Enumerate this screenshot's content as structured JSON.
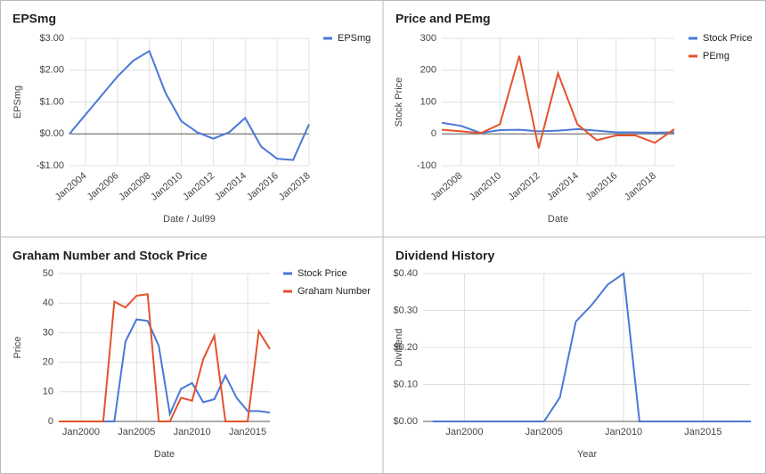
{
  "chart_data": [
    {
      "type": "line",
      "title": "EPSmg",
      "xlabel": "Date / Jul99",
      "ylabel": "EPSmg",
      "x": [
        2003,
        2004,
        2005,
        2006,
        2007,
        2008,
        2009,
        2010,
        2011,
        2012,
        2013,
        2014,
        2015,
        2016,
        2017,
        2018
      ],
      "series": [
        {
          "name": "EPSmg",
          "color": "#4a78d6",
          "values": [
            0,
            0.6,
            1.2,
            1.8,
            2.3,
            2.6,
            1.3,
            0.4,
            0.05,
            -0.15,
            0.05,
            0.5,
            -0.4,
            -0.78,
            -0.82,
            0.3
          ]
        }
      ],
      "xlim": [
        2003,
        2018
      ],
      "xticks": [
        {
          "value": 2004,
          "label": "Jan2004"
        },
        {
          "value": 2006,
          "label": "Jan2006"
        },
        {
          "value": 2008,
          "label": "Jan2008"
        },
        {
          "value": 2010,
          "label": "Jan2010"
        },
        {
          "value": 2012,
          "label": "Jan2012"
        },
        {
          "value": 2014,
          "label": "Jan2014"
        },
        {
          "value": 2016,
          "label": "Jan2016"
        },
        {
          "value": 2018,
          "label": "Jan2018"
        }
      ],
      "ylim": [
        -1,
        3
      ],
      "yticks": [
        {
          "value": 3,
          "label": "$3.00"
        },
        {
          "value": 2,
          "label": "$2.00"
        },
        {
          "value": 1,
          "label": "$1.00"
        },
        {
          "value": 0,
          "label": "$0.00"
        },
        {
          "value": -1,
          "label": "-$1.00"
        }
      ],
      "grid": true,
      "legend": "right"
    },
    {
      "type": "line",
      "title": "Price and PEmg",
      "xlabel": "Date",
      "ylabel": "Stock Price",
      "x": [
        2007,
        2008,
        2009,
        2010,
        2011,
        2012,
        2013,
        2014,
        2015,
        2016,
        2017,
        2018,
        2019
      ],
      "series": [
        {
          "name": "Stock Price",
          "color": "#4a78d6",
          "values": [
            35,
            25,
            3,
            12,
            13,
            8,
            10,
            15,
            10,
            5,
            5,
            4,
            5
          ]
        },
        {
          "name": "PEmg",
          "color": "#e4522d",
          "values": [
            13,
            8,
            2,
            30,
            245,
            -45,
            190,
            30,
            -20,
            -5,
            -5,
            -28,
            15
          ]
        }
      ],
      "xlim": [
        2007,
        2019
      ],
      "xticks": [
        {
          "value": 2008,
          "label": "Jan2008"
        },
        {
          "value": 2010,
          "label": "Jan2010"
        },
        {
          "value": 2012,
          "label": "Jan2012"
        },
        {
          "value": 2014,
          "label": "Jan2014"
        },
        {
          "value": 2016,
          "label": "Jan2016"
        },
        {
          "value": 2018,
          "label": "Jan2018"
        }
      ],
      "ylim": [
        -100,
        300
      ],
      "yticks": [
        300,
        200,
        100,
        0,
        -100
      ],
      "grid": true,
      "legend": "right"
    },
    {
      "type": "line",
      "title": "Graham Number and Stock Price",
      "xlabel": "Date",
      "ylabel": "Price",
      "x": [
        1998,
        1999,
        2000,
        2001,
        2002,
        2003,
        2004,
        2005,
        2006,
        2007,
        2008,
        2009,
        2010,
        2011,
        2012,
        2013,
        2014,
        2015,
        2016,
        2017
      ],
      "series": [
        {
          "name": "Stock Price",
          "color": "#4a78d6",
          "values": [
            0,
            0,
            0,
            0,
            0,
            0,
            27,
            34.5,
            34,
            25.5,
            2.5,
            11,
            13,
            6.5,
            7.5,
            15.5,
            8,
            3.5,
            3.5,
            3
          ]
        },
        {
          "name": "Graham Number",
          "color": "#e4522d",
          "values": [
            0,
            0,
            0,
            0,
            0,
            40.5,
            38.5,
            42.5,
            43,
            0,
            0,
            8,
            7,
            21,
            29,
            0,
            0,
            0,
            30.5,
            24.5
          ]
        }
      ],
      "xlim": [
        1998,
        2017
      ],
      "xticks": [
        {
          "value": 2000,
          "label": "Jan2000"
        },
        {
          "value": 2005,
          "label": "Jan2005"
        },
        {
          "value": 2010,
          "label": "Jan2010"
        },
        {
          "value": 2015,
          "label": "Jan2015"
        }
      ],
      "ylim": [
        0,
        50
      ],
      "yticks": [
        50,
        40,
        30,
        20,
        10,
        0
      ],
      "grid": true,
      "legend": "right"
    },
    {
      "type": "line",
      "title": "Dividend History",
      "xlabel": "Year",
      "ylabel": "Dividend",
      "x": [
        1998,
        1999,
        2000,
        2001,
        2002,
        2003,
        2004,
        2005,
        2006,
        2007,
        2008,
        2009,
        2010,
        2011,
        2012,
        2013,
        2014,
        2015,
        2016,
        2017,
        2018
      ],
      "series": [
        {
          "name": "Dividend",
          "color": "#4a78d6",
          "values": [
            0,
            0,
            0,
            0,
            0,
            0,
            0,
            0,
            0.065,
            0.27,
            0.315,
            0.37,
            0.4,
            0,
            0,
            0,
            0,
            0,
            0,
            0,
            0
          ]
        }
      ],
      "xlim": [
        1997.4,
        2018
      ],
      "xticks": [
        {
          "value": 2000,
          "label": "Jan2000"
        },
        {
          "value": 2005,
          "label": "Jan2005"
        },
        {
          "value": 2010,
          "label": "Jan2010"
        },
        {
          "value": 2015,
          "label": "Jan2015"
        }
      ],
      "ylim": [
        0,
        0.4
      ],
      "yticks": [
        {
          "value": 0.4,
          "label": "$0.40"
        },
        {
          "value": 0.3,
          "label": "$0.30"
        },
        {
          "value": 0.2,
          "label": "$0.20"
        },
        {
          "value": 0.1,
          "label": "$0.10"
        },
        {
          "value": 0,
          "label": "$0.00"
        }
      ],
      "grid": true
    }
  ]
}
